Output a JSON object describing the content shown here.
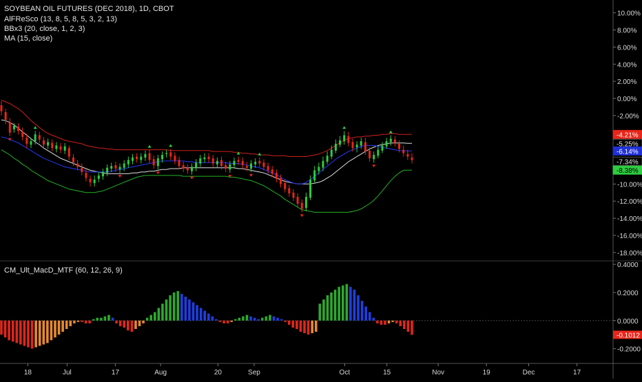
{
  "header": {
    "symbol": "SOYBEAN OIL FUTURES (DEC 2018), 1D, CBOT",
    "ind1": "AlFReSco (13, 8, 5, 8, 5, 3, 2, 13)",
    "ind2": "BBx3 (20, close, 1, 2, 3)",
    "ind3": "MA (15, close)",
    "ind4": "CM_Ult_MacD_MTF (60, 12, 26, 9)"
  },
  "colors": {
    "background": "#000000",
    "up_candle": "#2ecc40",
    "down_candle": "#e8261a",
    "upper_band_outer": "#d0211c",
    "lower_band_outer": "#24b324",
    "middle_band": "#2030d8",
    "white_band": "#e0e0e0",
    "macd_up_strong": "#2ea82e",
    "macd_up_weak": "#1e3ee0",
    "macd_down_strong": "#e0261a",
    "macd_down_weak": "#e68a2e",
    "axis_text": "#d8d8d8"
  },
  "price_axis": {
    "ticks": [
      "10.00%",
      "8.00%",
      "6.00%",
      "4.00%",
      "2.00%",
      "0.00%",
      "-2.00%",
      "-4.00%",
      "-6.00%",
      "-8.00%",
      "-10.00%",
      "-12.00%",
      "-14.00%",
      "-16.00%",
      "-18.00%"
    ],
    "tick_values": [
      10,
      8,
      6,
      4,
      2,
      0,
      -2,
      -4,
      -6,
      -8,
      -10,
      -12,
      -14,
      -16,
      -18
    ],
    "tags": [
      {
        "label": "-4.21%",
        "value": -4.21,
        "bg": "#e8261a",
        "fg": "#ffffff"
      },
      {
        "label": "-5.25%",
        "value": -5.25,
        "bg": "#000000",
        "fg": "#e0e0e0"
      },
      {
        "label": "-6.14%",
        "value": -6.14,
        "bg": "#2030d8",
        "fg": "#ffffff"
      },
      {
        "label": "-7.34%",
        "value": -7.34,
        "bg": "#000000",
        "fg": "#e0e0e0"
      },
      {
        "label": "-8.38%",
        "value": -8.38,
        "bg": "#2ecc40",
        "fg": "#000000"
      }
    ]
  },
  "macd_axis": {
    "ticks": [
      "0.4000",
      "0.2000",
      "0.0000",
      "-0.2000"
    ],
    "tick_values": [
      0.4,
      0.2,
      0,
      -0.2
    ],
    "tag": {
      "label": "-0.1012",
      "value": -0.1012,
      "bg": "#e8261a",
      "fg": "#ffffff"
    }
  },
  "time_axis": {
    "labels": [
      "18",
      "Jul",
      "17",
      "Aug",
      "20",
      "Sep",
      "Oct",
      "15",
      "Nov",
      "19",
      "Dec",
      "17"
    ],
    "label_days": [
      -12,
      1,
      17,
      32,
      51,
      63,
      93,
      107,
      124,
      140,
      154,
      170
    ]
  },
  "chart_data": [
    {
      "type": "candlestick",
      "title": "SOYBEAN OIL FUTURES (DEC 2018), 1D, CBOT",
      "ylabel": "",
      "ylim": [
        -18.9,
        11.5
      ],
      "x_unit": "days from Jul 1",
      "close": [
        -1.5,
        -2.5,
        -4,
        -3.2,
        -3.8,
        -4.5,
        -5.3,
        -5.0,
        -4.2,
        -4.8,
        -5.4,
        -5.1,
        -5.8,
        -5.5,
        -6.0,
        -5.6,
        -6.8,
        -7.5,
        -8.0,
        -8.6,
        -9.3,
        -9.8,
        -9.5,
        -9.0,
        -8.6,
        -8.1,
        -7.9,
        -8.2,
        -8.0,
        -7.6,
        -7.2,
        -6.9,
        -7.1,
        -6.8,
        -6.5,
        -7.2,
        -7.8,
        -7.0,
        -6.6,
        -6.4,
        -6.8,
        -7.3,
        -7.9,
        -8.2,
        -8.4,
        -8.0,
        -7.5,
        -7.0,
        -6.9,
        -7.1,
        -7.6,
        -7.3,
        -7.9,
        -8.2,
        -7.7,
        -7.3,
        -7.4,
        -7.8,
        -8.1,
        -7.6,
        -7.4,
        -7.6,
        -8.0,
        -8.4,
        -8.8,
        -9.4,
        -10.0,
        -10.6,
        -11.1,
        -11.6,
        -12.3,
        -12.9,
        -11.5,
        -9.5,
        -8.4,
        -8.0,
        -7.3,
        -6.7,
        -6.0,
        -5.3,
        -4.9,
        -4.3,
        -5.2,
        -5.8,
        -5.4,
        -5.0,
        -6.2,
        -7.0,
        -6.6,
        -6.0,
        -5.5,
        -5.0,
        -4.7,
        -5.2,
        -5.9,
        -6.4,
        -6.8,
        -7.2
      ],
      "open": [
        -0.8,
        -1.6,
        -2.8,
        -3.6,
        -3.3,
        -3.9,
        -4.6,
        -5.4,
        -5.0,
        -4.3,
        -4.9,
        -5.5,
        -5.2,
        -5.9,
        -5.6,
        -6.1,
        -5.8,
        -6.9,
        -7.6,
        -8.1,
        -8.7,
        -9.4,
        -9.9,
        -9.4,
        -9.1,
        -8.7,
        -8.2,
        -7.8,
        -8.3,
        -8.1,
        -7.7,
        -7.3,
        -6.8,
        -7.2,
        -6.9,
        -6.4,
        -7.1,
        -7.9,
        -7.1,
        -6.5,
        -6.3,
        -6.7,
        -7.2,
        -7.8,
        -8.1,
        -8.5,
        -8.1,
        -7.6,
        -7.1,
        -6.8,
        -7.0,
        -7.7,
        -7.2,
        -7.8,
        -8.3,
        -7.8,
        -7.2,
        -7.3,
        -7.9,
        -8.2,
        -7.7,
        -7.3,
        -7.5,
        -7.9,
        -8.3,
        -8.7,
        -9.3,
        -9.9,
        -10.5,
        -11.0,
        -11.5,
        -12.2,
        -12.8,
        -11.6,
        -9.6,
        -8.5,
        -8.1,
        -7.4,
        -6.8,
        -6.1,
        -5.4,
        -5.0,
        -4.4,
        -5.1,
        -5.7,
        -5.5,
        -5.1,
        -6.1,
        -7.1,
        -6.7,
        -6.1,
        -5.6,
        -5.1,
        -4.8,
        -5.3,
        -6.0,
        -6.5,
        -6.9
      ],
      "high": [
        -0.3,
        -1.2,
        -2.3,
        -2.9,
        -2.9,
        -3.4,
        -4.1,
        -4.6,
        -3.8,
        -3.9,
        -4.5,
        -4.7,
        -4.8,
        -5.1,
        -5.2,
        -5.2,
        -5.5,
        -6.5,
        -7.2,
        -7.6,
        -8.3,
        -9.0,
        -9.0,
        -8.6,
        -8.2,
        -7.7,
        -7.5,
        -7.4,
        -7.6,
        -7.2,
        -6.8,
        -6.5,
        -6.4,
        -6.4,
        -6.1,
        -6.0,
        -6.7,
        -6.6,
        -6.2,
        -6.0,
        -5.9,
        -6.3,
        -6.8,
        -7.4,
        -7.7,
        -7.6,
        -7.1,
        -6.6,
        -6.4,
        -6.4,
        -6.6,
        -6.9,
        -6.8,
        -7.4,
        -7.3,
        -6.9,
        -6.8,
        -6.9,
        -7.4,
        -7.2,
        -7.0,
        -6.9,
        -7.1,
        -7.5,
        -7.9,
        -8.3,
        -8.9,
        -9.5,
        -10.1,
        -10.6,
        -11.1,
        -11.8,
        -11.0,
        -9.0,
        -7.9,
        -7.5,
        -6.8,
        -6.2,
        -5.5,
        -4.8,
        -4.4,
        -3.8,
        -3.9,
        -4.7,
        -5.0,
        -4.6,
        -4.6,
        -5.7,
        -6.2,
        -5.6,
        -5.1,
        -4.6,
        -4.3,
        -4.4,
        -4.9,
        -5.5,
        -6.0,
        -6.4
      ],
      "low": [
        -2.0,
        -3.0,
        -4.4,
        -4.0,
        -4.2,
        -4.9,
        -5.8,
        -5.8,
        -5.4,
        -5.2,
        -5.8,
        -5.9,
        -6.2,
        -6.3,
        -6.4,
        -6.5,
        -7.2,
        -7.9,
        -8.4,
        -9.0,
        -9.7,
        -10.3,
        -10.3,
        -9.8,
        -9.5,
        -9.1,
        -8.6,
        -8.6,
        -8.7,
        -8.5,
        -8.1,
        -7.7,
        -7.5,
        -7.6,
        -7.3,
        -7.6,
        -8.2,
        -8.3,
        -7.5,
        -6.9,
        -7.2,
        -7.7,
        -8.3,
        -8.6,
        -8.8,
        -8.9,
        -8.5,
        -8.0,
        -7.5,
        -7.5,
        -8.0,
        -8.1,
        -8.3,
        -8.6,
        -8.7,
        -8.2,
        -7.8,
        -8.2,
        -8.5,
        -8.6,
        -8.1,
        -8.0,
        -8.4,
        -8.8,
        -9.2,
        -9.8,
        -10.4,
        -11.0,
        -11.5,
        -12.0,
        -12.7,
        -13.3,
        -13.2,
        -11.9,
        -9.9,
        -8.9,
        -8.5,
        -7.7,
        -7.1,
        -6.4,
        -5.7,
        -5.4,
        -5.6,
        -6.2,
        -6.3,
        -5.9,
        -6.6,
        -7.4,
        -7.5,
        -7.0,
        -6.4,
        -5.9,
        -5.5,
        -5.6,
        -6.3,
        -6.8,
        -7.2,
        -7.6
      ],
      "upper_outer": [
        -0.2,
        -0.4,
        -0.6,
        -0.9,
        -1.2,
        -1.6,
        -2.1,
        -2.6,
        -3.0,
        -3.4,
        -3.8,
        -4.1,
        -4.3,
        -4.5,
        -4.7,
        -4.9,
        -5.0,
        -5.1,
        -5.2,
        -5.3,
        -5.5,
        -5.6,
        -5.7,
        -5.8,
        -5.8,
        -5.9,
        -5.9,
        -6.0,
        -6.0,
        -6.0,
        -6.0,
        -6.0,
        -6.0,
        -6.0,
        -6.0,
        -6.0,
        -6.0,
        -6.0,
        -6.0,
        -6.0,
        -6.1,
        -6.1,
        -6.1,
        -6.1,
        -6.1,
        -6.1,
        -6.1,
        -6.1,
        -6.1,
        -6.1,
        -6.2,
        -6.2,
        -6.2,
        -6.2,
        -6.2,
        -6.3,
        -6.3,
        -6.4,
        -6.4,
        -6.5,
        -6.5,
        -6.6,
        -6.6,
        -6.6,
        -6.7,
        -6.7,
        -6.7,
        -6.7,
        -6.8,
        -6.8,
        -6.8,
        -6.8,
        -6.8,
        -6.7,
        -6.6,
        -6.5,
        -6.3,
        -6.1,
        -5.8,
        -5.5,
        -5.2,
        -4.9,
        -4.7,
        -4.6,
        -4.5,
        -4.5,
        -4.4,
        -4.4,
        -4.3,
        -4.3,
        -4.2,
        -4.2,
        -4.1,
        -4.1,
        -4.2,
        -4.2,
        -4.2,
        -4.21
      ],
      "white_band": [
        -2.5,
        -2.6,
        -2.8,
        -3.1,
        -3.5,
        -3.9,
        -4.3,
        -4.7,
        -5.1,
        -5.4,
        -5.8,
        -6.1,
        -6.4,
        -6.7,
        -7.0,
        -7.2,
        -7.4,
        -7.6,
        -7.8,
        -8.0,
        -8.2,
        -8.4,
        -8.5,
        -8.6,
        -8.7,
        -8.8,
        -8.8,
        -8.8,
        -8.8,
        -8.8,
        -8.8,
        -8.7,
        -8.7,
        -8.6,
        -8.6,
        -8.5,
        -8.5,
        -8.4,
        -8.3,
        -8.3,
        -8.2,
        -8.2,
        -8.2,
        -8.1,
        -8.1,
        -8.1,
        -8.1,
        -8.1,
        -8.1,
        -8.1,
        -8.1,
        -8.1,
        -8.1,
        -8.1,
        -8.1,
        -8.1,
        -8.2,
        -8.2,
        -8.3,
        -8.4,
        -8.5,
        -8.6,
        -8.7,
        -8.9,
        -9.1,
        -9.3,
        -9.5,
        -9.7,
        -9.8,
        -9.9,
        -10.0,
        -10.0,
        -10.0,
        -10.0,
        -9.9,
        -9.8,
        -9.6,
        -9.3,
        -9.0,
        -8.6,
        -8.2,
        -7.8,
        -7.4,
        -7.1,
        -6.8,
        -6.5,
        -6.2,
        -5.9,
        -5.7,
        -5.5,
        -5.4,
        -5.3,
        -5.2,
        -5.2,
        -5.2,
        -5.2,
        -5.25,
        -5.25
      ],
      "ma": [
        -4.5,
        -4.6,
        -4.8,
        -5.0,
        -5.2,
        -5.5,
        -5.8,
        -6.1,
        -6.4,
        -6.7,
        -7.0,
        -7.2,
        -7.4,
        -7.6,
        -7.8,
        -8.0,
        -8.1,
        -8.2,
        -8.3,
        -8.4,
        -8.5,
        -8.6,
        -8.6,
        -8.6,
        -8.6,
        -8.6,
        -8.5,
        -8.4,
        -8.3,
        -8.2,
        -8.1,
        -8.0,
        -7.9,
        -7.8,
        -7.7,
        -7.6,
        -7.5,
        -7.4,
        -7.3,
        -7.3,
        -7.3,
        -7.3,
        -7.3,
        -7.3,
        -7.4,
        -7.4,
        -7.5,
        -7.5,
        -7.5,
        -7.5,
        -7.5,
        -7.5,
        -7.5,
        -7.5,
        -7.6,
        -7.6,
        -7.6,
        -7.7,
        -7.8,
        -7.9,
        -8.0,
        -8.1,
        -8.3,
        -8.5,
        -8.7,
        -8.9,
        -9.2,
        -9.5,
        -9.7,
        -9.9,
        -10.0,
        -10.0,
        -9.8,
        -9.5,
        -9.1,
        -8.7,
        -8.3,
        -7.9,
        -7.5,
        -7.1,
        -6.8,
        -6.5,
        -6.2,
        -6.0,
        -5.8,
        -5.6,
        -5.5,
        -5.5,
        -5.5,
        -5.6,
        -5.7,
        -5.8,
        -5.9,
        -6.0,
        -6.1,
        -6.1,
        -6.14,
        -6.14
      ],
      "lower_inner": [
        -6.0,
        -6.3,
        -6.6,
        -7.0,
        -7.3,
        -7.7,
        -8.0,
        -8.4,
        -8.7,
        -9.0,
        -9.3,
        -9.6,
        -9.8,
        -10.0,
        -10.2,
        -10.4,
        -10.6,
        -10.7,
        -10.8,
        -10.9,
        -11.0,
        -11.0,
        -11.0,
        -10.9,
        -10.8,
        -10.6,
        -10.4,
        -10.2,
        -10.0,
        -9.8,
        -9.6,
        -9.4,
        -9.2,
        -9.1,
        -9.0,
        -9.0,
        -9.0,
        -9.0,
        -9.0,
        -9.0,
        -9.0,
        -9.0,
        -9.0,
        -9.1,
        -9.1,
        -9.1,
        -9.1,
        -9.1,
        -9.1,
        -9.1,
        -9.1,
        -9.1,
        -9.1,
        -9.1,
        -9.2,
        -9.2,
        -9.3,
        -9.4,
        -9.5,
        -9.6,
        -9.8,
        -10.0,
        -10.2,
        -10.5,
        -10.8,
        -11.1,
        -11.4,
        -11.8,
        -12.1,
        -12.4,
        -12.7,
        -13.0,
        -13.1,
        -13.2,
        -13.3,
        -13.3,
        -13.3,
        -13.3,
        -13.3,
        -13.3,
        -13.3,
        -13.3,
        -13.3,
        -13.2,
        -13.1,
        -12.9,
        -12.6,
        -12.3,
        -11.9,
        -11.4,
        -10.8,
        -10.2,
        -9.6,
        -9.1,
        -8.7,
        -8.4,
        -8.38,
        -8.38
      ],
      "upper_inner": [
        -1.0,
        -1.2,
        -1.5,
        -1.9,
        -2.4,
        -2.9,
        -3.4,
        -3.9,
        -4.3,
        -4.6,
        -5.0,
        -5.3,
        -5.5,
        -5.8,
        -6.0,
        -6.2,
        -6.4,
        -6.6,
        -6.8,
        -7.0,
        -7.2,
        -7.3,
        -7.4,
        -7.5,
        -7.5,
        -7.5,
        -7.5,
        -7.4,
        -7.4,
        -7.3,
        -7.2,
        -7.2,
        -7.1,
        -7.0,
        -7.0,
        -7.0,
        -6.9,
        -6.9,
        -6.9,
        -6.9,
        -6.9,
        -7.0,
        -7.0,
        -7.0,
        -7.0,
        -7.0,
        -7.0,
        -7.0,
        -7.0,
        -7.0,
        -7.0,
        -7.0,
        -7.0,
        -7.0,
        -7.0,
        -7.1,
        -7.1,
        -7.2,
        -7.2,
        -7.3,
        -7.4,
        -7.5,
        -7.6,
        -7.8,
        -7.9,
        -8.1,
        -8.3,
        -8.5,
        -8.7,
        -8.9,
        -9.1,
        -9.2,
        -9.2,
        -9.2,
        -9.0,
        -8.8,
        -8.5,
        -8.1,
        -7.7,
        -7.2,
        -6.8,
        -6.3,
        -5.9,
        -5.6,
        -5.4,
        -5.2,
        -5.0,
        -5.0,
        -5.0,
        -5.0,
        -5.1,
        -5.2,
        -5.4,
        -5.6,
        -6.0,
        -6.6,
        -7.2,
        -7.34
      ]
    },
    {
      "type": "bar",
      "title": "CM_Ult_MacD_MTF (60, 12, 26, 9)",
      "ylabel": "",
      "ylim": [
        -0.3,
        0.42
      ],
      "values": [
        -0.1,
        -0.12,
        -0.14,
        -0.15,
        -0.16,
        -0.17,
        -0.18,
        -0.19,
        -0.2,
        -0.19,
        -0.18,
        -0.17,
        -0.16,
        -0.14,
        -0.12,
        -0.1,
        -0.08,
        -0.06,
        -0.04,
        -0.02,
        -0.01,
        -0.01,
        -0.02,
        -0.02,
        0.01,
        0.02,
        0.02,
        0.03,
        0.04,
        0.02,
        -0.02,
        -0.04,
        -0.05,
        -0.07,
        -0.08,
        -0.06,
        -0.04,
        -0.02,
        0.02,
        0.04,
        0.06,
        0.09,
        0.12,
        0.15,
        0.18,
        0.2,
        0.21,
        0.19,
        0.17,
        0.15,
        0.13,
        0.11,
        0.09,
        0.07,
        0.05,
        0.03,
        0.01,
        -0.01,
        -0.02,
        -0.02,
        -0.01,
        0.01,
        0.02,
        0.03,
        0.04,
        0.03,
        0.02,
        0.01,
        0.02,
        0.03,
        0.04,
        0.03,
        0.02,
        0.01,
        -0.01,
        -0.03,
        -0.05,
        -0.06,
        -0.08,
        -0.09,
        -0.1,
        -0.09,
        -0.08,
        0.12,
        0.15,
        0.18,
        0.2,
        0.22,
        0.24,
        0.25,
        0.26,
        0.24,
        0.22,
        0.18,
        0.14,
        0.1,
        0.06,
        0.02,
        -0.02,
        -0.03,
        -0.03,
        -0.02,
        -0.01,
        -0.02,
        -0.04,
        -0.06,
        -0.08,
        -0.1012
      ]
    }
  ]
}
